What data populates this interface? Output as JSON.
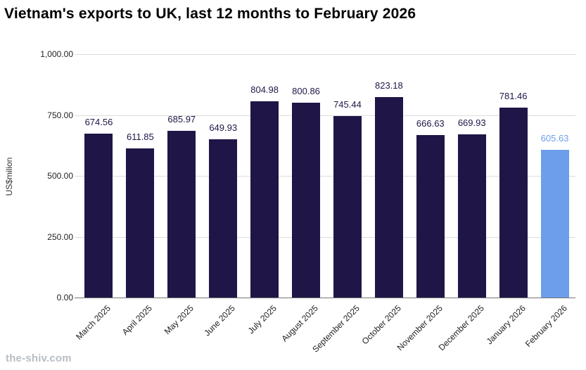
{
  "watermark": "the-shiv.com",
  "chart_data": {
    "type": "bar",
    "title": "Vietnam's exports to UK, last 12 months to February 2026",
    "xlabel": "",
    "ylabel": "US$milion",
    "categories": [
      "March 2025",
      "April 2025",
      "May 2025",
      "June 2025",
      "July 2025",
      "August 2025",
      "September 2025",
      "October 2025",
      "November 2025",
      "December 2025",
      "January 2026",
      "February 2026"
    ],
    "values": [
      674.56,
      611.85,
      685.97,
      649.93,
      804.98,
      800.86,
      745.44,
      823.18,
      666.63,
      669.93,
      781.46,
      605.63
    ],
    "value_labels": [
      "674.56",
      "611.85",
      "685.97",
      "649.93",
      "804.98",
      "800.86",
      "745.44",
      "823.18",
      "666.63",
      "669.93",
      "781.46",
      "605.63"
    ],
    "ylim": [
      0,
      1000
    ],
    "ytick_values": [
      0,
      250,
      500,
      750,
      1000
    ],
    "ytick_labels": [
      "0.00",
      "250.00",
      "500.00",
      "750.00",
      "1,000.00"
    ],
    "grid": true,
    "legend_position": "none",
    "bar_color": "#201547",
    "highlight_color": "#6d9eeb",
    "highlight_index": 11,
    "gridline_color": "#dcdcdc",
    "baseline_color": "#757575"
  }
}
